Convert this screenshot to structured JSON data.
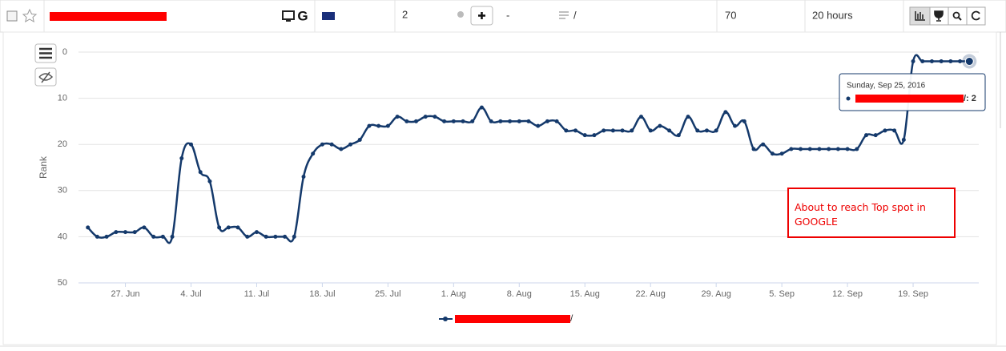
{
  "row": {
    "engine": "G",
    "rank": "2",
    "change": "-",
    "url": "/",
    "volume": "70",
    "updated": "20 hours"
  },
  "chart_data": {
    "type": "line",
    "y_label": "Rank",
    "x": [
      "2016-06-23",
      "2016-06-24",
      "2016-06-25",
      "2016-06-26",
      "2016-06-27",
      "2016-06-28",
      "2016-06-29",
      "2016-06-30",
      "2016-07-01",
      "2016-07-02",
      "2016-07-03",
      "2016-07-04",
      "2016-07-05",
      "2016-07-06",
      "2016-07-07",
      "2016-07-08",
      "2016-07-09",
      "2016-07-10",
      "2016-07-11",
      "2016-07-12",
      "2016-07-13",
      "2016-07-14",
      "2016-07-15",
      "2016-07-16",
      "2016-07-17",
      "2016-07-18",
      "2016-07-19",
      "2016-07-20",
      "2016-07-21",
      "2016-07-22",
      "2016-07-23",
      "2016-07-24",
      "2016-07-25",
      "2016-07-26",
      "2016-07-27",
      "2016-07-28",
      "2016-07-29",
      "2016-07-30",
      "2016-07-31",
      "2016-08-01",
      "2016-08-02",
      "2016-08-03",
      "2016-08-04",
      "2016-08-05",
      "2016-08-06",
      "2016-08-07",
      "2016-08-08",
      "2016-08-09",
      "2016-08-10",
      "2016-08-11",
      "2016-08-12",
      "2016-08-13",
      "2016-08-14",
      "2016-08-15",
      "2016-08-16",
      "2016-08-17",
      "2016-08-18",
      "2016-08-19",
      "2016-08-20",
      "2016-08-21",
      "2016-08-22",
      "2016-08-23",
      "2016-08-24",
      "2016-08-25",
      "2016-08-26",
      "2016-08-27",
      "2016-08-28",
      "2016-08-29",
      "2016-08-30",
      "2016-08-31",
      "2016-09-01",
      "2016-09-02",
      "2016-09-03",
      "2016-09-04",
      "2016-09-05",
      "2016-09-06",
      "2016-09-07",
      "2016-09-08",
      "2016-09-09",
      "2016-09-10",
      "2016-09-11",
      "2016-09-12",
      "2016-09-13",
      "2016-09-14",
      "2016-09-15",
      "2016-09-16",
      "2016-09-17",
      "2016-09-18",
      "2016-09-19",
      "2016-09-20",
      "2016-09-21",
      "2016-09-22",
      "2016-09-23",
      "2016-09-24",
      "2016-09-25"
    ],
    "series": [
      {
        "name": "/",
        "color": "#14396b",
        "values": [
          38,
          40,
          40,
          39,
          39,
          39,
          38,
          40,
          40,
          40,
          23,
          20,
          26,
          28,
          38,
          38,
          38,
          40,
          39,
          40,
          40,
          40,
          40,
          27,
          22,
          20,
          20,
          21,
          20,
          19,
          16,
          16,
          16,
          14,
          15,
          15,
          14,
          14,
          15,
          15,
          15,
          15,
          12,
          15,
          15,
          15,
          15,
          15,
          16,
          15,
          15,
          17,
          17,
          18,
          18,
          17,
          17,
          17,
          17,
          14,
          17,
          16,
          17,
          18,
          14,
          17,
          17,
          17,
          13,
          16,
          15,
          21,
          20,
          22,
          22,
          21,
          21,
          21,
          21,
          21,
          21,
          21,
          21,
          18,
          18,
          17,
          17,
          19,
          2,
          2,
          2,
          2,
          2,
          2,
          2
        ]
      }
    ],
    "xlim": [
      "2016-06-22",
      "2016-09-26"
    ],
    "xticks": [
      {
        "value": "2016-06-27",
        "label": "27. Jun"
      },
      {
        "value": "2016-07-04",
        "label": "4. Jul"
      },
      {
        "value": "2016-07-11",
        "label": "11. Jul"
      },
      {
        "value": "2016-07-18",
        "label": "18. Jul"
      },
      {
        "value": "2016-07-25",
        "label": "25. Jul"
      },
      {
        "value": "2016-08-01",
        "label": "1. Aug"
      },
      {
        "value": "2016-08-08",
        "label": "8. Aug"
      },
      {
        "value": "2016-08-15",
        "label": "15. Aug"
      },
      {
        "value": "2016-08-22",
        "label": "22. Aug"
      },
      {
        "value": "2016-08-29",
        "label": "29. Aug"
      },
      {
        "value": "2016-09-05",
        "label": "5. Sep"
      },
      {
        "value": "2016-09-12",
        "label": "12. Sep"
      },
      {
        "value": "2016-09-19",
        "label": "19. Sep"
      }
    ],
    "ylim": [
      50,
      0
    ],
    "yticks": [
      0,
      10,
      20,
      30,
      40,
      50
    ],
    "grid": true,
    "annotation": "About to reach Top spot in GOOGLE",
    "tooltip": {
      "title": "Sunday, Sep 25, 2016",
      "label": "/: 2"
    }
  }
}
